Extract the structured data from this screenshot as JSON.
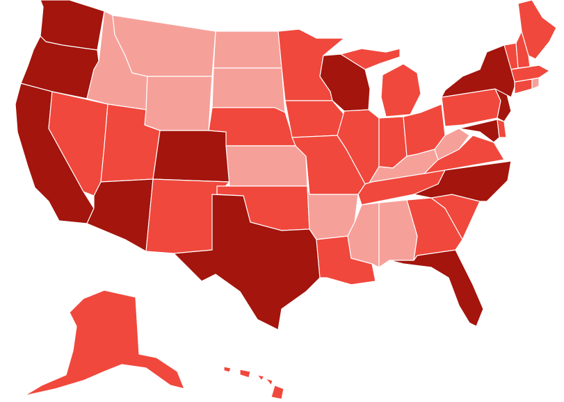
{
  "legend": [],
  "colors": {
    "dark": "#a3150d",
    "medium": "#f0483d",
    "light": "#f6a09a",
    "border": "#ffffff",
    "background": "#ffffff"
  },
  "states": [
    {
      "code": "WA",
      "tier": "dark"
    },
    {
      "code": "OR",
      "tier": "dark"
    },
    {
      "code": "CA",
      "tier": "dark"
    },
    {
      "code": "NV",
      "tier": "medium"
    },
    {
      "code": "ID",
      "tier": "light"
    },
    {
      "code": "MT",
      "tier": "light"
    },
    {
      "code": "WY",
      "tier": "light"
    },
    {
      "code": "UT",
      "tier": "medium"
    },
    {
      "code": "AZ",
      "tier": "dark"
    },
    {
      "code": "CO",
      "tier": "dark"
    },
    {
      "code": "NM",
      "tier": "medium"
    },
    {
      "code": "ND",
      "tier": "light"
    },
    {
      "code": "SD",
      "tier": "light"
    },
    {
      "code": "NE",
      "tier": "medium"
    },
    {
      "code": "KS",
      "tier": "light"
    },
    {
      "code": "OK",
      "tier": "medium"
    },
    {
      "code": "TX",
      "tier": "dark"
    },
    {
      "code": "MN",
      "tier": "medium"
    },
    {
      "code": "IA",
      "tier": "medium"
    },
    {
      "code": "MO",
      "tier": "medium"
    },
    {
      "code": "AR",
      "tier": "light"
    },
    {
      "code": "LA",
      "tier": "medium"
    },
    {
      "code": "WI",
      "tier": "dark"
    },
    {
      "code": "IL",
      "tier": "medium"
    },
    {
      "code": "MI",
      "tier": "medium"
    },
    {
      "code": "IN",
      "tier": "medium"
    },
    {
      "code": "OH",
      "tier": "medium"
    },
    {
      "code": "KY",
      "tier": "light"
    },
    {
      "code": "TN",
      "tier": "medium"
    },
    {
      "code": "MS",
      "tier": "light"
    },
    {
      "code": "AL",
      "tier": "light"
    },
    {
      "code": "GA",
      "tier": "medium"
    },
    {
      "code": "FL",
      "tier": "dark"
    },
    {
      "code": "SC",
      "tier": "medium"
    },
    {
      "code": "NC",
      "tier": "dark"
    },
    {
      "code": "VA",
      "tier": "medium"
    },
    {
      "code": "WV",
      "tier": "light"
    },
    {
      "code": "PA",
      "tier": "medium"
    },
    {
      "code": "NY",
      "tier": "dark"
    },
    {
      "code": "NJ",
      "tier": "dark"
    },
    {
      "code": "MD",
      "tier": "dark"
    },
    {
      "code": "DE",
      "tier": "medium"
    },
    {
      "code": "CT",
      "tier": "medium"
    },
    {
      "code": "RI",
      "tier": "light"
    },
    {
      "code": "MA",
      "tier": "medium"
    },
    {
      "code": "VT",
      "tier": "medium"
    },
    {
      "code": "NH",
      "tier": "medium"
    },
    {
      "code": "ME",
      "tier": "medium"
    },
    {
      "code": "AK",
      "tier": "medium"
    },
    {
      "code": "HI",
      "tier": "medium"
    }
  ]
}
